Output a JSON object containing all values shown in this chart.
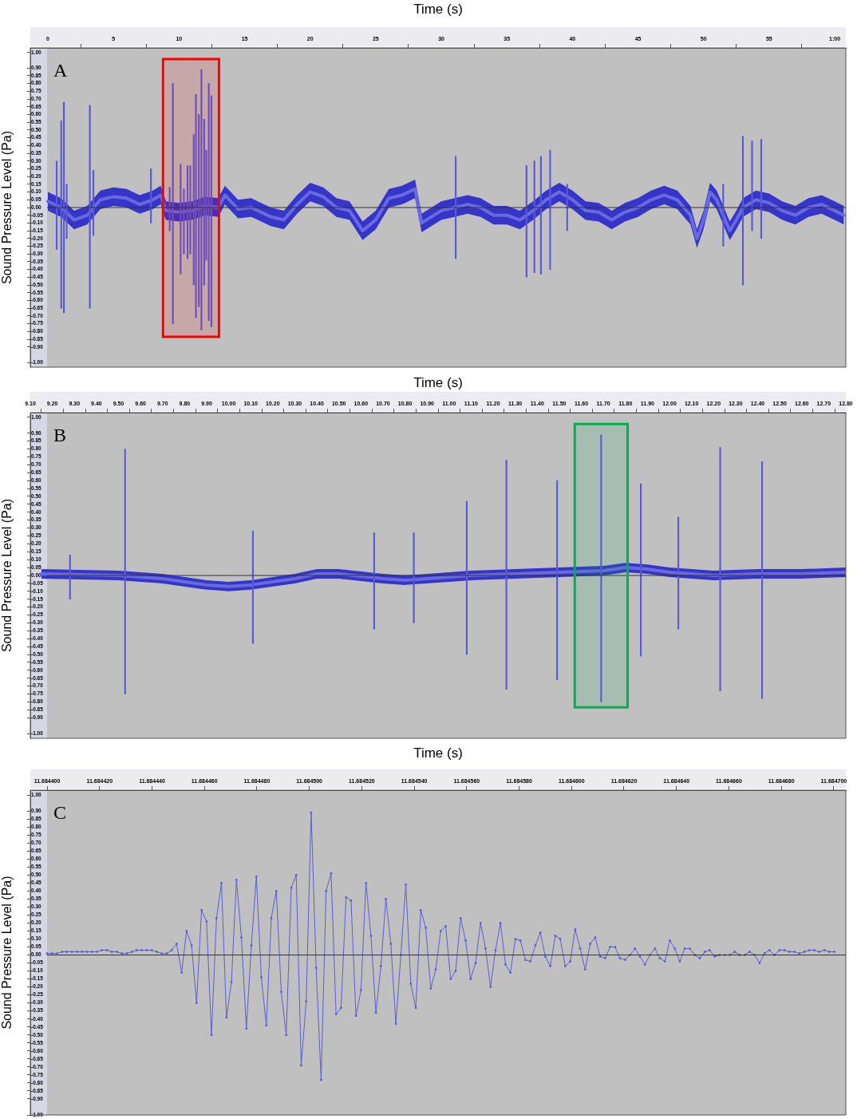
{
  "chart_data": [
    {
      "type": "line",
      "xlabel": "Time (s)",
      "ylabel": "Sound Pressure Level (Pa)",
      "annotations": [
        "A"
      ],
      "xlim": [
        -1.34,
        60.85
      ],
      "ylim": [
        -1.03,
        1.03
      ],
      "xticks": [
        0,
        5,
        10,
        15,
        20,
        25,
        30,
        35,
        40,
        45,
        50,
        55,
        {
          "value": 60,
          "label": "1:00"
        }
      ],
      "yticks": [
        {
          "value": 1,
          "label": "1.00"
        },
        {
          "value": 0.9,
          "label": "0.90"
        },
        {
          "value": 0.85,
          "label": "0.85"
        },
        {
          "value": 0.8,
          "label": "0.80"
        },
        {
          "value": 0.75,
          "label": "0.75"
        },
        {
          "value": 0.7,
          "label": "0.70"
        },
        {
          "value": 0.65,
          "label": "0.65"
        },
        {
          "value": 0.6,
          "label": "0.60"
        },
        {
          "value": 0.55,
          "label": "0.55"
        },
        {
          "value": 0.5,
          "label": "0.50"
        },
        {
          "value": 0.45,
          "label": "0.45"
        },
        {
          "value": 0.4,
          "label": "0.40"
        },
        {
          "value": 0.35,
          "label": "0.35"
        },
        {
          "value": 0.3,
          "label": "0.30"
        },
        {
          "value": 0.25,
          "label": "0.25"
        },
        {
          "value": 0.2,
          "label": "0.20"
        },
        {
          "value": 0.15,
          "label": "0.15"
        },
        {
          "value": 0.1,
          "label": "0.10"
        },
        {
          "value": 0.05,
          "label": "0.05"
        },
        {
          "value": 0,
          "label": "0.00"
        },
        {
          "value": -0.05,
          "label": "-0.05"
        },
        {
          "value": -0.1,
          "label": "-0.10"
        },
        {
          "value": -0.15,
          "label": "-0.15"
        },
        {
          "value": -0.2,
          "label": "-0.20"
        },
        {
          "value": -0.25,
          "label": "-0.25"
        },
        {
          "value": -0.3,
          "label": "-0.30"
        },
        {
          "value": -0.35,
          "label": "-0.35"
        },
        {
          "value": -0.4,
          "label": "-0.40"
        },
        {
          "value": -0.45,
          "label": "-0.45"
        },
        {
          "value": -0.5,
          "label": "-0.50"
        },
        {
          "value": -0.55,
          "label": "-0.55"
        },
        {
          "value": -0.6,
          "label": "-0.60"
        },
        {
          "value": -0.65,
          "label": "-0.65"
        },
        {
          "value": -0.7,
          "label": "-0.70"
        },
        {
          "value": -0.75,
          "label": "-0.75"
        },
        {
          "value": -0.8,
          "label": "-0.80"
        },
        {
          "value": -0.85,
          "label": "-0.85"
        },
        {
          "value": -0.9,
          "label": "-0.90"
        },
        {
          "value": -1,
          "label": "-1.00"
        }
      ],
      "ref_lines": [
        {
          "axis": "y",
          "value": 0,
          "color": "#333333"
        }
      ],
      "bands": [
        {
          "axis": "x",
          "from": 8.78,
          "to": 13.05,
          "color": "#ff0000"
        }
      ],
      "series": [
        {
          "color": "#6a6ae0",
          "x": [
            0,
            1,
            2,
            3,
            4,
            5,
            6,
            7,
            8,
            8.6,
            9,
            10,
            11,
            12,
            13,
            13.5,
            14.5,
            15.5,
            16,
            17,
            18,
            19,
            20,
            21,
            22,
            23,
            24,
            25,
            26,
            27,
            28,
            28.5,
            30,
            31,
            32,
            33,
            34,
            35,
            36,
            37,
            38,
            39,
            40,
            41,
            42,
            43,
            44,
            45,
            46,
            47,
            48,
            49,
            49.5,
            50,
            50.5,
            51,
            52,
            52.5,
            53,
            54,
            55,
            56,
            57,
            58,
            59,
            60,
            60.7
          ],
          "values": [
            0.04,
            0.0,
            -0.08,
            -0.05,
            0.05,
            0.07,
            0.06,
            0.02,
            0.05,
            0.08,
            -0.02,
            -0.03,
            -0.02,
            0.01,
            0.0,
            0.08,
            -0.01,
            0.0,
            -0.02,
            -0.06,
            -0.08,
            0.02,
            0.1,
            0.07,
            0.0,
            -0.02,
            -0.15,
            -0.08,
            0.06,
            0.08,
            0.12,
            -0.1,
            -0.02,
            0.0,
            0.02,
            0.0,
            -0.05,
            -0.05,
            -0.08,
            -0.02,
            0.05,
            0.1,
            0.05,
            -0.02,
            -0.03,
            -0.08,
            -0.03,
            0.0,
            0.05,
            0.08,
            0.05,
            -0.05,
            -0.2,
            -0.08,
            0.1,
            0.05,
            -0.15,
            -0.08,
            0.0,
            0.05,
            0.03,
            -0.02,
            -0.05,
            0.0,
            0.02,
            -0.02,
            -0.05
          ],
          "lower": [
            -0.02,
            -0.06,
            -0.14,
            -0.11,
            -0.01,
            0.01,
            0.0,
            -0.04,
            -0.01,
            0.02,
            -0.08,
            -0.09,
            -0.08,
            -0.05,
            -0.06,
            0.02,
            -0.07,
            -0.06,
            -0.08,
            -0.12,
            -0.14,
            -0.04,
            0.04,
            0.01,
            -0.06,
            -0.08,
            -0.21,
            -0.14,
            0.0,
            0.02,
            0.06,
            -0.16,
            -0.08,
            -0.06,
            -0.04,
            -0.06,
            -0.11,
            -0.11,
            -0.14,
            -0.08,
            -0.01,
            0.04,
            -0.01,
            -0.08,
            -0.09,
            -0.14,
            -0.09,
            -0.06,
            -0.01,
            0.02,
            -0.01,
            -0.11,
            -0.26,
            -0.14,
            0.04,
            -0.01,
            -0.21,
            -0.14,
            -0.06,
            -0.01,
            -0.03,
            -0.08,
            -0.11,
            -0.06,
            -0.04,
            -0.08,
            -0.11
          ],
          "upper": [
            0.1,
            0.06,
            -0.02,
            0.01,
            0.11,
            0.13,
            0.12,
            0.08,
            0.11,
            0.14,
            0.04,
            0.03,
            0.04,
            0.07,
            0.06,
            0.14,
            0.05,
            0.06,
            0.04,
            0.0,
            -0.02,
            0.08,
            0.16,
            0.13,
            0.06,
            0.04,
            -0.09,
            -0.02,
            0.12,
            0.14,
            0.18,
            -0.04,
            0.04,
            0.06,
            0.08,
            0.06,
            0.01,
            0.01,
            -0.02,
            0.04,
            0.11,
            0.16,
            0.11,
            0.04,
            0.03,
            -0.02,
            0.03,
            0.06,
            0.11,
            0.14,
            0.11,
            0.01,
            -0.14,
            -0.02,
            0.16,
            0.11,
            -0.09,
            -0.02,
            0.06,
            0.11,
            0.09,
            0.04,
            0.01,
            0.06,
            0.08,
            0.04,
            0.01
          ]
        },
        {
          "type": "bar",
          "color": "#5a5ad4",
          "x": [
            0.67,
            1.02,
            1.22,
            1.43,
            3.2,
            3.47,
            7.86,
            9.29,
            9.53,
            10.12,
            10.37,
            10.65,
            10.86,
            11.12,
            11.29,
            11.51,
            11.71,
            11.92,
            12.08,
            12.27,
            12.47,
            31.1,
            36.5,
            37.1,
            37.6,
            38.3,
            39.6,
            51.5,
            53,
            53.7,
            54.4
          ],
          "base": [
            -0.27,
            -0.65,
            -0.68,
            -0.2,
            -0.65,
            -0.18,
            -0.1,
            -0.15,
            -0.75,
            -0.43,
            -0.3,
            -0.33,
            -0.3,
            -0.5,
            -0.71,
            -0.64,
            -0.79,
            -0.5,
            -0.34,
            -0.73,
            -0.77,
            -0.33,
            -0.45,
            -0.42,
            -0.43,
            -0.4,
            -0.15,
            -0.25,
            -0.5,
            -0.15,
            -0.2
          ],
          "values": [
            0.57,
            1.21,
            1.36,
            0.35,
            1.31,
            0.42,
            0.35,
            0.28,
            1.55,
            0.71,
            0.42,
            0.6,
            0.57,
            0.97,
            1.44,
            1.24,
            1.68,
            1.07,
            0.71,
            1.53,
            1.49,
            0.66,
            0.72,
            0.72,
            0.76,
            0.77,
            0.3,
            0.4,
            0.96,
            0.58,
            0.64
          ]
        }
      ]
    },
    {
      "type": "line",
      "xlabel": "Time (s)",
      "ylabel": "Sound Pressure Level (Pa)",
      "annotations": [
        "B"
      ],
      "xlim": [
        9.1,
        12.8
      ],
      "ylim": [
        -1.03,
        1.03
      ],
      "xticks": [
        {
          "value": 9.1,
          "label": "9.10"
        },
        {
          "value": 9.2,
          "label": "9.20"
        },
        {
          "value": 9.3,
          "label": "9.30"
        },
        {
          "value": 9.4,
          "label": "9.40"
        },
        {
          "value": 9.5,
          "label": "9.50"
        },
        {
          "value": 9.6,
          "label": "9.60"
        },
        {
          "value": 9.7,
          "label": "9.70"
        },
        {
          "value": 9.8,
          "label": "9.80"
        },
        {
          "value": 9.9,
          "label": "9.90"
        },
        {
          "value": 10,
          "label": "10.00"
        },
        {
          "value": 10.1,
          "label": "10.10"
        },
        {
          "value": 10.2,
          "label": "10.20"
        },
        {
          "value": 10.3,
          "label": "10.30"
        },
        {
          "value": 10.4,
          "label": "10.40"
        },
        {
          "value": 10.5,
          "label": "10.50"
        },
        {
          "value": 10.6,
          "label": "10.60"
        },
        {
          "value": 10.7,
          "label": "10.70"
        },
        {
          "value": 10.8,
          "label": "10.80"
        },
        {
          "value": 10.9,
          "label": "10.90"
        },
        {
          "value": 11,
          "label": "11.00"
        },
        {
          "value": 11.1,
          "label": "11.10"
        },
        {
          "value": 11.2,
          "label": "11.20"
        },
        {
          "value": 11.3,
          "label": "11.30"
        },
        {
          "value": 11.4,
          "label": "11.40"
        },
        {
          "value": 11.5,
          "label": "11.50"
        },
        {
          "value": 11.6,
          "label": "11.60"
        },
        {
          "value": 11.7,
          "label": "11.70"
        },
        {
          "value": 11.8,
          "label": "11.80"
        },
        {
          "value": 11.9,
          "label": "11.90"
        },
        {
          "value": 12,
          "label": "12.00"
        },
        {
          "value": 12.1,
          "label": "12.10"
        },
        {
          "value": 12.2,
          "label": "12.20"
        },
        {
          "value": 12.3,
          "label": "12.30"
        },
        {
          "value": 12.4,
          "label": "12.40"
        },
        {
          "value": 12.5,
          "label": "12.50"
        },
        {
          "value": 12.6,
          "label": "12.60"
        },
        {
          "value": 12.7,
          "label": "12.70"
        },
        {
          "value": 12.8,
          "label": "12.80"
        }
      ],
      "yticks": [
        {
          "value": 1,
          "label": "1.00"
        },
        {
          "value": 0.9,
          "label": "0.90"
        },
        {
          "value": 0.85,
          "label": "0.85"
        },
        {
          "value": 0.8,
          "label": "0.80"
        },
        {
          "value": 0.75,
          "label": "0.75"
        },
        {
          "value": 0.7,
          "label": "0.70"
        },
        {
          "value": 0.65,
          "label": "0.65"
        },
        {
          "value": 0.6,
          "label": "0.60"
        },
        {
          "value": 0.55,
          "label": "0.55"
        },
        {
          "value": 0.5,
          "label": "0.50"
        },
        {
          "value": 0.45,
          "label": "0.45"
        },
        {
          "value": 0.4,
          "label": "0.40"
        },
        {
          "value": 0.35,
          "label": "0.35"
        },
        {
          "value": 0.3,
          "label": "0.30"
        },
        {
          "value": 0.25,
          "label": "0.25"
        },
        {
          "value": 0.2,
          "label": "0.20"
        },
        {
          "value": 0.15,
          "label": "0.15"
        },
        {
          "value": 0.1,
          "label": "0.10"
        },
        {
          "value": 0.05,
          "label": "0.05"
        },
        {
          "value": 0,
          "label": "0.00"
        },
        {
          "value": -0.05,
          "label": "-0.05"
        },
        {
          "value": -0.1,
          "label": "-0.10"
        },
        {
          "value": -0.15,
          "label": "-0.15"
        },
        {
          "value": -0.2,
          "label": "-0.20"
        },
        {
          "value": -0.25,
          "label": "-0.25"
        },
        {
          "value": -0.3,
          "label": "-0.30"
        },
        {
          "value": -0.35,
          "label": "-0.35"
        },
        {
          "value": -0.4,
          "label": "-0.40"
        },
        {
          "value": -0.45,
          "label": "-0.45"
        },
        {
          "value": -0.5,
          "label": "-0.50"
        },
        {
          "value": -0.55,
          "label": "-0.55"
        },
        {
          "value": -0.6,
          "label": "-0.60"
        },
        {
          "value": -0.65,
          "label": "-0.65"
        },
        {
          "value": -0.7,
          "label": "-0.70"
        },
        {
          "value": -0.75,
          "label": "-0.75"
        },
        {
          "value": -0.8,
          "label": "-0.80"
        },
        {
          "value": -0.85,
          "label": "-0.85"
        },
        {
          "value": -0.9,
          "label": "-0.90"
        },
        {
          "value": -1,
          "label": "-1.00"
        }
      ],
      "ref_lines": [
        {
          "axis": "y",
          "value": 0,
          "color": "#333333"
        }
      ],
      "bands": [
        {
          "axis": "x",
          "from": 11.57,
          "to": 11.81,
          "color": "#00b050"
        }
      ],
      "series": [
        {
          "color": "#6a6ae0",
          "x": [
            9.15,
            9.5,
            9.7,
            9.9,
            10.0,
            10.1,
            10.3,
            10.4,
            10.5,
            10.7,
            10.8,
            11.0,
            11.1,
            11.3,
            11.5,
            11.7,
            11.8,
            11.9,
            12.0,
            12.1,
            12.2,
            12.4,
            12.6,
            12.8
          ],
          "values": [
            0.01,
            0.0,
            -0.02,
            -0.06,
            -0.07,
            -0.06,
            -0.02,
            0.01,
            0.01,
            -0.02,
            -0.03,
            -0.01,
            0.0,
            0.01,
            0.02,
            0.03,
            0.05,
            0.04,
            0.02,
            0.01,
            0.0,
            0.01,
            0.01,
            0.02
          ],
          "lower": [
            -0.02,
            -0.03,
            -0.05,
            -0.09,
            -0.1,
            -0.09,
            -0.05,
            -0.02,
            -0.02,
            -0.05,
            -0.06,
            -0.04,
            -0.03,
            -0.02,
            -0.01,
            0.0,
            0.02,
            0.01,
            -0.01,
            -0.02,
            -0.03,
            -0.02,
            -0.02,
            -0.01
          ],
          "upper": [
            0.04,
            0.03,
            0.01,
            -0.03,
            -0.04,
            -0.03,
            0.01,
            0.04,
            0.04,
            0.01,
            0.0,
            0.02,
            0.03,
            0.04,
            0.05,
            0.06,
            0.08,
            0.07,
            0.05,
            0.04,
            0.03,
            0.04,
            0.04,
            0.05
          ]
        },
        {
          "type": "bar",
          "color": "#5a5ad4",
          "x": [
            9.28,
            9.53,
            10.11,
            10.66,
            10.84,
            11.08,
            11.26,
            11.49,
            11.69,
            11.87,
            12.04,
            12.23,
            12.42
          ],
          "base": [
            -0.15,
            -0.75,
            -0.43,
            -0.34,
            -0.3,
            -0.5,
            -0.72,
            -0.66,
            -0.8,
            -0.51,
            -0.34,
            -0.73,
            -0.78
          ],
          "values": [
            0.28,
            1.55,
            0.71,
            0.61,
            0.57,
            0.97,
            1.45,
            1.26,
            1.69,
            1.09,
            0.71,
            1.54,
            1.5
          ]
        }
      ]
    },
    {
      "type": "line",
      "xlabel": "Time (s)",
      "ylabel": "Sound Pressure Level (Pa)",
      "annotations": [
        "C"
      ],
      "marker": "circle",
      "xlim": [
        11.6843936,
        11.6847046
      ],
      "ylim": [
        -1.0,
        1.03
      ],
      "xticks": [
        {
          "value": 11.6844,
          "label": "11.684400"
        },
        {
          "value": 11.68442,
          "label": "11.684420"
        },
        {
          "value": 11.68444,
          "label": "11.684440"
        },
        {
          "value": 11.68446,
          "label": "11.684460"
        },
        {
          "value": 11.68448,
          "label": "11.684480"
        },
        {
          "value": 11.6845,
          "label": "11.684500"
        },
        {
          "value": 11.68452,
          "label": "11.684520"
        },
        {
          "value": 11.68454,
          "label": "11.684540"
        },
        {
          "value": 11.68456,
          "label": "11.684560"
        },
        {
          "value": 11.68458,
          "label": "11.684580"
        },
        {
          "value": 11.6846,
          "label": "11.684600"
        },
        {
          "value": 11.68462,
          "label": "11.684620"
        },
        {
          "value": 11.68464,
          "label": "11.684640"
        },
        {
          "value": 11.68466,
          "label": "11.684660"
        },
        {
          "value": 11.68468,
          "label": "11.684680"
        },
        {
          "value": 11.6847,
          "label": "11.684700"
        }
      ],
      "yticks": [
        {
          "value": 1,
          "label": "1.00"
        },
        {
          "value": 0.9,
          "label": "0.90"
        },
        {
          "value": 0.85,
          "label": "0.85"
        },
        {
          "value": 0.8,
          "label": "0.80"
        },
        {
          "value": 0.75,
          "label": "0.75"
        },
        {
          "value": 0.7,
          "label": "0.70"
        },
        {
          "value": 0.65,
          "label": "0.65"
        },
        {
          "value": 0.6,
          "label": "0.60"
        },
        {
          "value": 0.55,
          "label": "0.55"
        },
        {
          "value": 0.5,
          "label": "0.50"
        },
        {
          "value": 0.45,
          "label": "0.45"
        },
        {
          "value": 0.4,
          "label": "0.40"
        },
        {
          "value": 0.35,
          "label": "0.35"
        },
        {
          "value": 0.3,
          "label": "0.30"
        },
        {
          "value": 0.25,
          "label": "0.25"
        },
        {
          "value": 0.2,
          "label": "0.20"
        },
        {
          "value": 0.15,
          "label": "0.15"
        },
        {
          "value": 0.1,
          "label": "0.10"
        },
        {
          "value": 0.05,
          "label": "0.05"
        },
        {
          "value": 0,
          "label": "0.00"
        },
        {
          "value": -0.05,
          "label": "-0.05"
        },
        {
          "value": -0.1,
          "label": "-0.10"
        },
        {
          "value": -0.15,
          "label": "-0.15"
        },
        {
          "value": -0.2,
          "label": "-0.20"
        },
        {
          "value": -0.25,
          "label": "-0.25"
        },
        {
          "value": -0.3,
          "label": "-0.30"
        },
        {
          "value": -0.35,
          "label": "-0.35"
        },
        {
          "value": -0.4,
          "label": "-0.40"
        },
        {
          "value": -0.45,
          "label": "-0.45"
        },
        {
          "value": -0.5,
          "label": "-0.50"
        },
        {
          "value": -0.55,
          "label": "-0.55"
        },
        {
          "value": -0.6,
          "label": "-0.60"
        },
        {
          "value": -0.65,
          "label": "-0.65"
        },
        {
          "value": -0.7,
          "label": "-0.70"
        },
        {
          "value": -0.75,
          "label": "-0.75"
        },
        {
          "value": -0.8,
          "label": "-0.80"
        },
        {
          "value": -0.85,
          "label": "-0.85"
        },
        {
          "value": -0.9,
          "label": "-0.90"
        },
        {
          "value": -1,
          "label": "-1.00"
        }
      ],
      "ref_lines": [
        {
          "axis": "y",
          "value": 0,
          "color": "#333333"
        }
      ],
      "series": [
        {
          "color": "#5c5cd6",
          "x": [
            11.6844,
            11.6844019,
            11.6844038,
            11.6844057,
            11.6844076,
            11.6844095,
            11.6844114,
            11.6844133,
            11.6844152,
            11.6844171,
            11.684419,
            11.6844209,
            11.6844228,
            11.6844247,
            11.6844266,
            11.6844285,
            11.6844304,
            11.6844323,
            11.6844342,
            11.6844361,
            11.684438,
            11.6844399,
            11.6844418,
            11.6844437,
            11.6844456,
            11.6844475,
            11.6844494,
            11.6844513,
            11.6844532,
            11.6844551,
            11.684457,
            11.6844589,
            11.6844608,
            11.6844627,
            11.6844646,
            11.6844665,
            11.6844684,
            11.6844703,
            11.6844722,
            11.6844741,
            11.684476,
            11.6844779,
            11.6844798,
            11.6844817,
            11.6844836,
            11.6844855,
            11.6844874,
            11.6844893,
            11.6844912,
            11.6844931,
            11.684495,
            11.6844969,
            11.6844988,
            11.6845007,
            11.6845026,
            11.6845045,
            11.6845064,
            11.6845083,
            11.6845102,
            11.6845121,
            11.684514,
            11.6845159,
            11.6845178,
            11.6845197,
            11.6845216,
            11.6845235,
            11.6845254,
            11.6845273,
            11.6845292,
            11.6845311,
            11.684533,
            11.6845349,
            11.6845368,
            11.6845387,
            11.6845406,
            11.6845425,
            11.6845444,
            11.6845463,
            11.6845482,
            11.6845501,
            11.684552,
            11.6845539,
            11.6845558,
            11.6845577,
            11.6845596,
            11.6845615,
            11.6845634,
            11.6845653,
            11.6845672,
            11.6845691,
            11.684571,
            11.6845729,
            11.6845748,
            11.6845767,
            11.6845786,
            11.6845805,
            11.6845824,
            11.6845843,
            11.6845862,
            11.6845881,
            11.68459,
            11.6845919,
            11.6845938,
            11.6845957,
            11.6845976,
            11.6845995,
            11.6846014,
            11.6846033,
            11.6846052,
            11.6846071,
            11.684609,
            11.6846109,
            11.6846128,
            11.6846147,
            11.6846166,
            11.6846185,
            11.6846204,
            11.6846223,
            11.6846242,
            11.6846261,
            11.684628,
            11.6846299,
            11.6846318,
            11.6846337,
            11.6846356,
            11.6846375,
            11.6846394,
            11.6846413,
            11.6846432,
            11.6846451,
            11.684647,
            11.6846489,
            11.6846508,
            11.6846527,
            11.6846546,
            11.6846565,
            11.6846584,
            11.6846603,
            11.6846622,
            11.6846641,
            11.684666,
            11.6846679,
            11.6846698,
            11.6846717,
            11.6846736,
            11.6846755,
            11.6846774,
            11.6846793,
            11.6846812,
            11.6846831,
            11.684685,
            11.6846869,
            11.6846888,
            11.6846907,
            11.6846926,
            11.6846945,
            11.6846964,
            11.6846983,
            11.6847002
          ],
          "values": [
            0.01,
            0.01,
            0.01,
            0.02,
            0.02,
            0.02,
            0.02,
            0.02,
            0.02,
            0.02,
            0.02,
            0.03,
            0.03,
            0.02,
            0.02,
            0.01,
            0.01,
            0.02,
            0.03,
            0.03,
            0.03,
            0.03,
            0.02,
            0.01,
            0.01,
            0.03,
            0.07,
            -0.11,
            0.15,
            0.06,
            -0.3,
            0.28,
            0.21,
            -0.5,
            0.23,
            0.45,
            -0.39,
            -0.17,
            0.47,
            0.11,
            -0.46,
            0.06,
            0.49,
            -0.14,
            -0.44,
            0.23,
            0.4,
            -0.23,
            -0.5,
            0.42,
            0.5,
            -0.69,
            -0.29,
            0.89,
            -0.08,
            -0.78,
            0.4,
            0.51,
            -0.37,
            -0.33,
            0.36,
            0.34,
            -0.38,
            -0.22,
            0.45,
            0.12,
            -0.36,
            -0.07,
            0.35,
            0.07,
            -0.43,
            0.0,
            0.44,
            -0.18,
            -0.33,
            0.28,
            0.17,
            -0.21,
            -0.09,
            0.15,
            0.18,
            -0.15,
            -0.1,
            0.23,
            0.09,
            -0.15,
            -0.05,
            0.2,
            0.04,
            -0.2,
            0.03,
            0.2,
            -0.06,
            -0.11,
            0.1,
            0.09,
            -0.03,
            -0.04,
            0.06,
            0.14,
            -0.01,
            -0.07,
            0.12,
            0.1,
            -0.07,
            -0.04,
            0.16,
            0.04,
            -0.09,
            0.07,
            0.11,
            -0.01,
            -0.02,
            0.05,
            0.05,
            -0.02,
            -0.03,
            0.0,
            0.04,
            -0.01,
            -0.06,
            0.0,
            0.04,
            -0.02,
            -0.04,
            0.09,
            0.04,
            -0.04,
            0.04,
            0.04,
            0.0,
            -0.02,
            0.02,
            0.03,
            -0.01,
            0.0,
            0.0,
            0.0,
            0.02,
            0.0,
            0.0,
            0.02,
            0.0,
            -0.05,
            0.01,
            0.03,
            0.0,
            0.03,
            0.03,
            0.02,
            0.02,
            0.01,
            0.02,
            0.03,
            0.03,
            0.02,
            0.03,
            0.02,
            0.02
          ]
        }
      ]
    }
  ]
}
